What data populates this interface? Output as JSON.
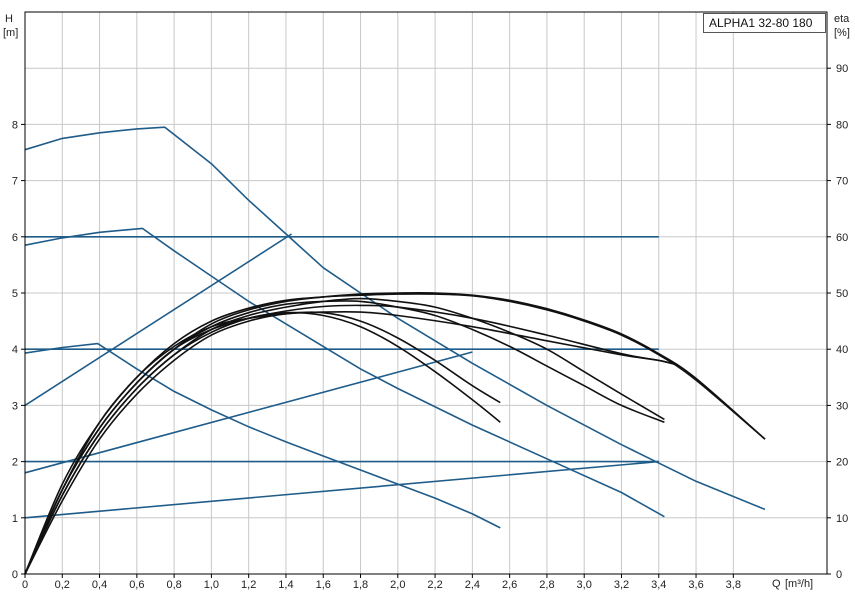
{
  "chart_data": {
    "type": "line",
    "title": "ALPHA1 32-80 180",
    "x_axis": {
      "label": "Q",
      "unit": "[m³/h]",
      "range": [
        0,
        4.4
      ],
      "ticks": [
        0,
        0.2,
        0.4,
        0.6,
        0.8,
        1.0,
        1.2,
        1.4,
        1.6,
        1.8,
        2.0,
        2.2,
        2.4,
        2.6,
        2.8,
        3.0,
        3.2,
        3.4,
        3.6,
        3.8
      ],
      "tick_labels": [
        "0",
        "0,2",
        "0,4",
        "0,6",
        "0,8",
        "1,0",
        "1,2",
        "1,4",
        "1,6",
        "1,8",
        "2,0",
        "2,2",
        "2,4",
        "2,6",
        "2,8",
        "3,0",
        "3,2",
        "3,4",
        "3,6",
        "3,8"
      ]
    },
    "y_left": {
      "label": "H",
      "unit": "[m]",
      "range": [
        0,
        10
      ],
      "ticks": [
        0,
        1,
        2,
        3,
        4,
        5,
        6,
        7,
        8
      ],
      "tick_labels": [
        "0",
        "1",
        "2",
        "3",
        "4",
        "5",
        "6",
        "7",
        "8"
      ]
    },
    "y_right": {
      "label": "eta",
      "unit": "[%]",
      "range": [
        0,
        100
      ],
      "ticks": [
        0,
        10,
        20,
        30,
        40,
        50,
        60,
        70,
        80,
        90
      ],
      "tick_labels": [
        "0",
        "10",
        "20",
        "30",
        "40",
        "50",
        "60",
        "70",
        "80",
        "90"
      ]
    },
    "grid": true,
    "pump_curves": [
      {
        "x": [
          0,
          0.2,
          0.4,
          0.6,
          0.75,
          1.0,
          1.2,
          1.4,
          1.6,
          2.0,
          2.4,
          2.8,
          3.2,
          3.6,
          3.97
        ],
        "y": [
          7.55,
          7.75,
          7.85,
          7.92,
          7.95,
          7.3,
          6.65,
          6.05,
          5.45,
          4.55,
          3.75,
          3.0,
          2.3,
          1.65,
          1.15
        ]
      },
      {
        "x": [
          0,
          0.2,
          0.4,
          0.63,
          0.8,
          1.0,
          1.2,
          1.4,
          1.6,
          1.8,
          2.0,
          2.4,
          2.8,
          3.2,
          3.43
        ],
        "y": [
          5.85,
          5.98,
          6.08,
          6.15,
          5.75,
          5.3,
          4.85,
          4.45,
          4.05,
          3.65,
          3.3,
          2.65,
          2.05,
          1.45,
          1.02
        ]
      },
      {
        "x": [
          0,
          0.2,
          0.39,
          0.6,
          0.8,
          1.0,
          1.2,
          1.4,
          1.6,
          1.8,
          2.0,
          2.2,
          2.4,
          2.55
        ],
        "y": [
          3.93,
          4.03,
          4.1,
          3.65,
          3.25,
          2.92,
          2.62,
          2.35,
          2.1,
          1.85,
          1.6,
          1.35,
          1.07,
          0.82
        ]
      },
      {
        "x": [
          0,
          3.4
        ],
        "y": [
          6.0,
          6.0
        ]
      },
      {
        "x": [
          0,
          3.4
        ],
        "y": [
          4.0,
          4.0
        ]
      },
      {
        "x": [
          0,
          3.4
        ],
        "y": [
          2.0,
          2.0
        ]
      },
      {
        "x": [
          0,
          1.43
        ],
        "y": [
          3.0,
          6.05
        ]
      },
      {
        "x": [
          0,
          2.4
        ],
        "y": [
          1.8,
          3.95
        ]
      },
      {
        "x": [
          0,
          3.4
        ],
        "y": [
          1.0,
          2.0
        ]
      }
    ],
    "efficiency_curves": [
      {
        "x": [
          0,
          0.2,
          0.4,
          0.6,
          0.8,
          1.0,
          1.2,
          1.4,
          1.6,
          1.8,
          2.0,
          2.2,
          2.4,
          2.55
        ],
        "y": [
          0,
          14,
          25,
          33,
          39,
          43,
          45.5,
          46.5,
          46,
          44,
          40.5,
          36,
          31,
          27
        ]
      },
      {
        "x": [
          0,
          0.2,
          0.4,
          0.6,
          0.8,
          1.0,
          1.2,
          1.4,
          1.6,
          1.8,
          2.0,
          2.2,
          2.4,
          2.55
        ],
        "y": [
          0,
          13,
          24,
          32,
          38,
          42.5,
          45,
          46.3,
          46.5,
          45,
          42,
          38,
          33.5,
          30.5
        ]
      },
      {
        "x": [
          0,
          0.2,
          0.4,
          0.6,
          0.8,
          1.0,
          1.2,
          1.4,
          1.6,
          1.8,
          2.0,
          2.2,
          2.4,
          2.6,
          2.8,
          3.0,
          3.2,
          3.43
        ],
        "y": [
          0,
          15,
          26,
          34,
          40,
          44,
          46.5,
          48,
          48.5,
          48.5,
          47.5,
          46,
          43.5,
          40.5,
          37,
          33.5,
          30,
          27
        ]
      },
      {
        "x": [
          0,
          0.2,
          0.4,
          0.6,
          0.8,
          1.0,
          1.2,
          1.4,
          1.6,
          1.8,
          2.0,
          2.2,
          2.4,
          2.6,
          2.8,
          3.0,
          3.2,
          3.43
        ],
        "y": [
          0,
          14,
          25,
          33,
          39,
          43.5,
          46,
          47.5,
          48.5,
          49,
          48.5,
          47.5,
          45.5,
          43,
          40,
          36,
          32,
          27.5
        ]
      },
      {
        "x": [
          0,
          0.2,
          0.4,
          0.6,
          0.8,
          1.0,
          1.2,
          1.4,
          1.6,
          1.8,
          2.0,
          2.2,
          2.4,
          2.6,
          2.8,
          3.0,
          3.2,
          3.4,
          3.6,
          3.97
        ],
        "y": [
          0,
          16,
          27,
          35,
          41,
          45,
          47.3,
          48.7,
          49.3,
          49.6,
          49.8,
          49.8,
          49.5,
          48.5,
          47,
          45,
          42.5,
          39,
          34.5,
          24
        ]
      },
      {
        "x": [
          0,
          0.2,
          0.4,
          0.6,
          0.8,
          1.0,
          1.2,
          1.4,
          1.6,
          1.8,
          2.0,
          2.2,
          2.4,
          2.6,
          2.8,
          3.0,
          3.2,
          3.4,
          3.6,
          3.97
        ],
        "y": [
          0,
          15,
          26,
          34,
          40,
          44.5,
          47,
          48.5,
          49.3,
          49.8,
          50,
          50,
          49.6,
          48.7,
          47.2,
          45.2,
          42.7,
          39.2,
          34.8,
          24
        ]
      },
      {
        "x": [
          0,
          0.2,
          0.4,
          0.6,
          0.8,
          1.0,
          1.2,
          1.4,
          1.6,
          1.8,
          2.0,
          2.4,
          2.8,
          3.2,
          3.4,
          3.5
        ],
        "y": [
          0,
          15,
          27,
          35,
          40.5,
          44,
          45.5,
          46.3,
          46.6,
          46.6,
          46,
          44,
          41.5,
          39,
          38,
          37.2
        ]
      },
      {
        "x": [
          0,
          0.2,
          0.4,
          0.6,
          0.8,
          1.0,
          1.2,
          1.4,
          1.6,
          1.8,
          2.0,
          2.4,
          2.8,
          3.2,
          3.4,
          3.5
        ],
        "y": [
          0,
          15,
          26,
          34,
          40,
          43.5,
          45.5,
          46.8,
          47.6,
          47.8,
          47.5,
          45.5,
          42.5,
          39.2,
          38,
          37.2
        ]
      }
    ],
    "colors": {
      "pump": "#1f5c8a",
      "efficiency": "#111111",
      "grid": "#c8c8c8",
      "axis": "#000000"
    }
  }
}
